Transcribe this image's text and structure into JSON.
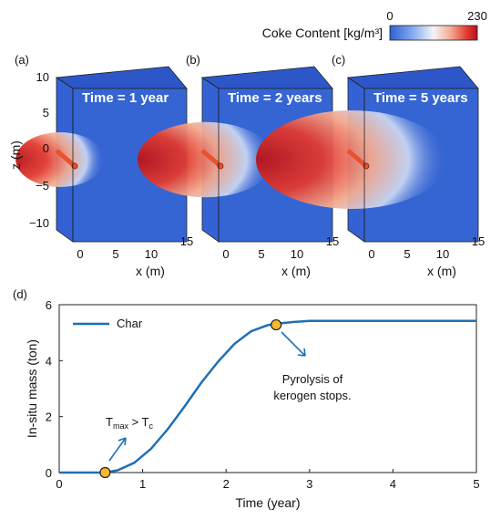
{
  "colorbar": {
    "title": "Coke Content [kg/m³]",
    "min_label": "0",
    "max_label": "230",
    "colors": [
      "#2f5fd0",
      "#7fa8ee",
      "#f4f4f8",
      "#f3a98e",
      "#e23a30",
      "#b5121b"
    ]
  },
  "panels": [
    {
      "tag": "(a)",
      "time_label": "Time = 1 year",
      "intensity": 0.25
    },
    {
      "tag": "(b)",
      "time_label": "Time = 2 years",
      "intensity": 0.6
    },
    {
      "tag": "(c)",
      "time_label": "Time = 5 years",
      "intensity": 1.0
    }
  ],
  "panel_axes": {
    "z_label": "z (m)",
    "x_label": "x (m)",
    "z_ticks": [
      "10",
      "5",
      "0",
      "−5",
      "−10"
    ],
    "x_ticks": [
      "0",
      "5",
      "10",
      "15"
    ]
  },
  "chart_data": {
    "type": "line",
    "tag": "(d)",
    "xlabel": "Time (year)",
    "ylabel": "In-situ mass (ton)",
    "xlim": [
      0,
      5
    ],
    "ylim": [
      0,
      6
    ],
    "xticks": [
      0,
      1,
      2,
      3,
      4,
      5
    ],
    "yticks": [
      0,
      2,
      4,
      6
    ],
    "grid": false,
    "legend_position": "top-left",
    "series": [
      {
        "name": "Char",
        "color": "#1f6fb5",
        "x": [
          0,
          0.3,
          0.55,
          0.7,
          0.9,
          1.1,
          1.3,
          1.5,
          1.7,
          1.9,
          2.1,
          2.3,
          2.5,
          2.6,
          2.8,
          3.0,
          3.5,
          4.0,
          4.5,
          5.0
        ],
        "y": [
          0,
          0,
          0,
          0.08,
          0.35,
          0.85,
          1.55,
          2.35,
          3.2,
          3.95,
          4.6,
          5.05,
          5.27,
          5.32,
          5.38,
          5.42,
          5.42,
          5.42,
          5.42,
          5.42
        ]
      }
    ],
    "markers": [
      {
        "x": 0.55,
        "y": 0.0,
        "color": "#f5b82e"
      },
      {
        "x": 2.6,
        "y": 5.28,
        "color": "#f5b82e"
      }
    ],
    "annotations": [
      {
        "text_main": "T",
        "sub1": "max",
        "mid": " > T",
        "sub2": "c"
      },
      {
        "line1": "Pyrolysis of",
        "line2": "kerogen stops."
      }
    ]
  }
}
